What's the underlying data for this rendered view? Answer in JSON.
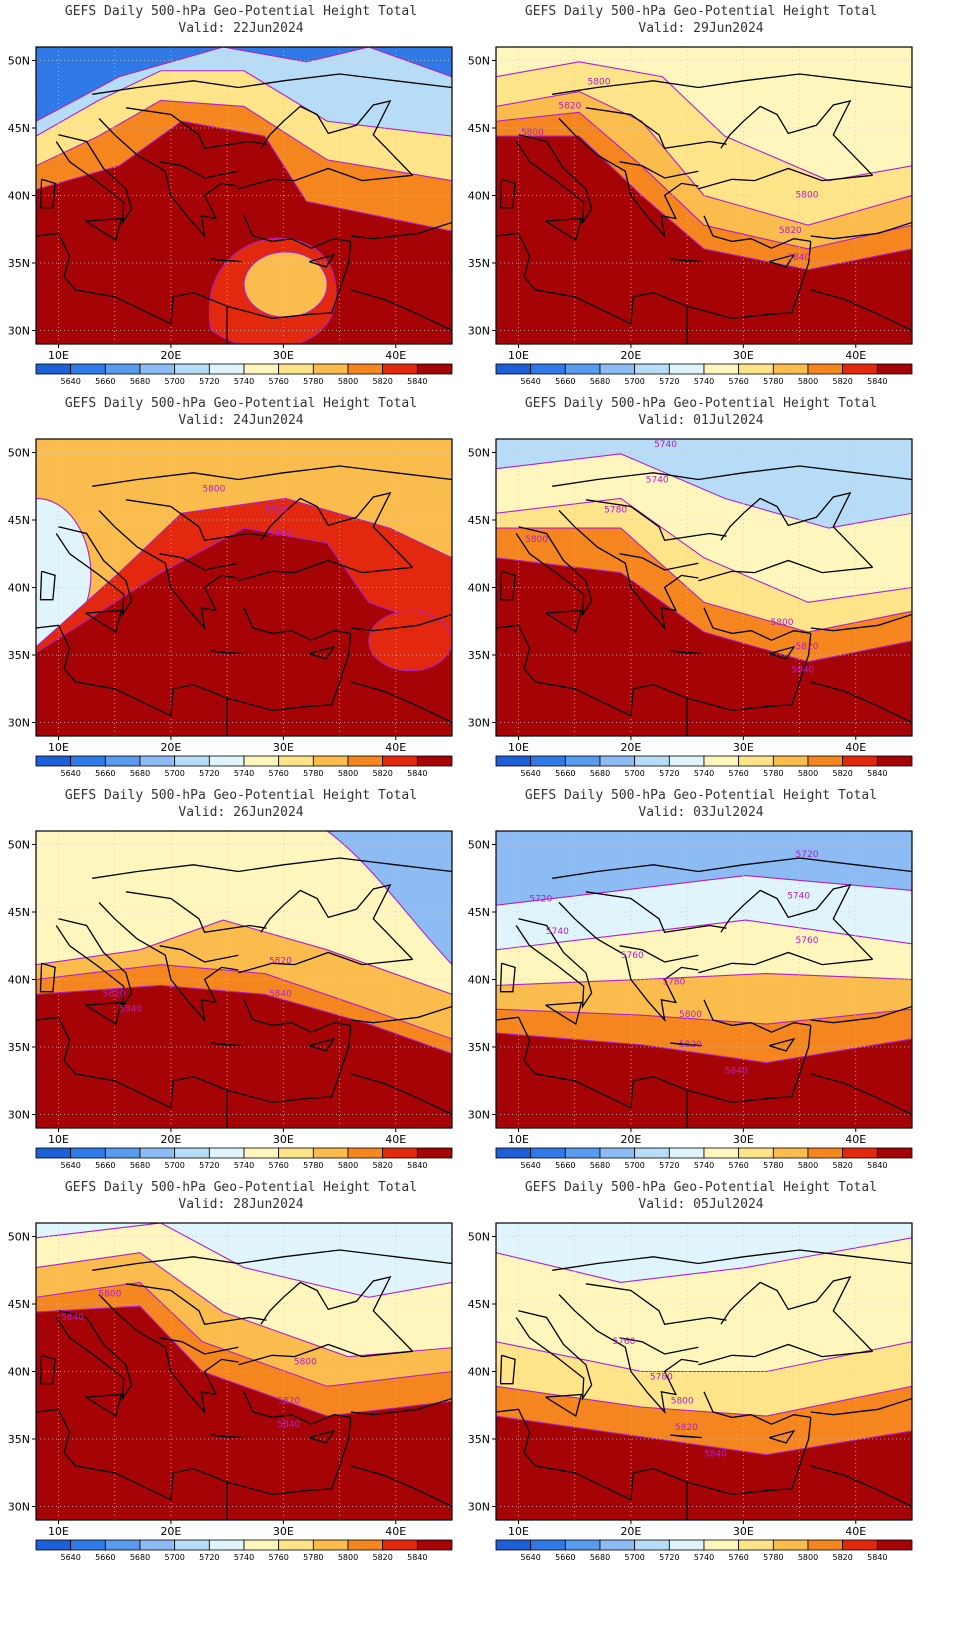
{
  "product_title": "GEFS Daily 500-hPa Geo-Potential Height Total",
  "valid_prefix": "Valid:",
  "lat_ticks": [
    "50N",
    "45N",
    "40N",
    "35N",
    "30N"
  ],
  "lon_ticks": [
    "10E",
    "20E",
    "30E",
    "40E"
  ],
  "colorbar": {
    "labels": [
      "5640",
      "5660",
      "5680",
      "5700",
      "5720",
      "5740",
      "5760",
      "5780",
      "5800",
      "5820",
      "5840"
    ],
    "colors": [
      "#1c5fd6",
      "#2f7ae6",
      "#5a9bef",
      "#8cbcf3",
      "#b7dcf7",
      "#e0f4fb",
      "#fff6be",
      "#ffe489",
      "#fbbc4e",
      "#f5861f",
      "#e2280f",
      "#a50306"
    ]
  },
  "contour_color": "#b020c8",
  "border_color": "#000000",
  "panels": [
    {
      "valid": "22Jun2024",
      "contour_labels": []
    },
    {
      "valid": "29Jun2024",
      "contour_labels": [
        "5800",
        "5820",
        "5800",
        "5800",
        "5820",
        "5840"
      ]
    },
    {
      "valid": "24Jun2024",
      "contour_labels": [
        "5800",
        "5820",
        "5840"
      ]
    },
    {
      "valid": "01Jul2024",
      "contour_labels": [
        "5740",
        "5740",
        "5780",
        "5800",
        "5800",
        "5820",
        "5840"
      ]
    },
    {
      "valid": "26Jun2024",
      "contour_labels": [
        "5820",
        "5820",
        "5840",
        "5840"
      ]
    },
    {
      "valid": "03Jul2024",
      "contour_labels": [
        "5720",
        "5720",
        "5740",
        "5740",
        "5760",
        "5760",
        "5780",
        "5800",
        "5820",
        "5840"
      ]
    },
    {
      "valid": "28Jun2024",
      "contour_labels": [
        "5800",
        "5840",
        "5800",
        "5820",
        "5840"
      ]
    },
    {
      "valid": "05Jul2024",
      "contour_labels": [
        "5760",
        "5780",
        "5800",
        "5820",
        "5840"
      ]
    }
  ]
}
